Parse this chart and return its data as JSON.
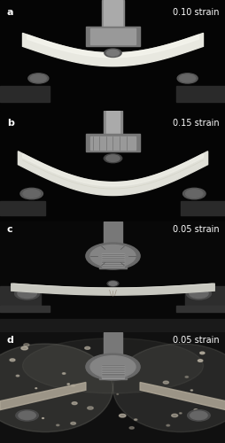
{
  "panels": [
    {
      "label": "a",
      "strain": "0.10 strain"
    },
    {
      "label": "b",
      "strain": "0.15 strain"
    },
    {
      "label": "c",
      "strain": "0.05 strain"
    },
    {
      "label": "d",
      "strain": "0.05 strain"
    }
  ],
  "bg_color": "#000000",
  "label_color": "#ffffff",
  "strain_color": "#ffffff",
  "border_color": "#888888",
  "label_fontsize": 8,
  "strain_fontsize": 7,
  "figure_width": 2.55,
  "figure_height": 5.0,
  "dpi": 100
}
